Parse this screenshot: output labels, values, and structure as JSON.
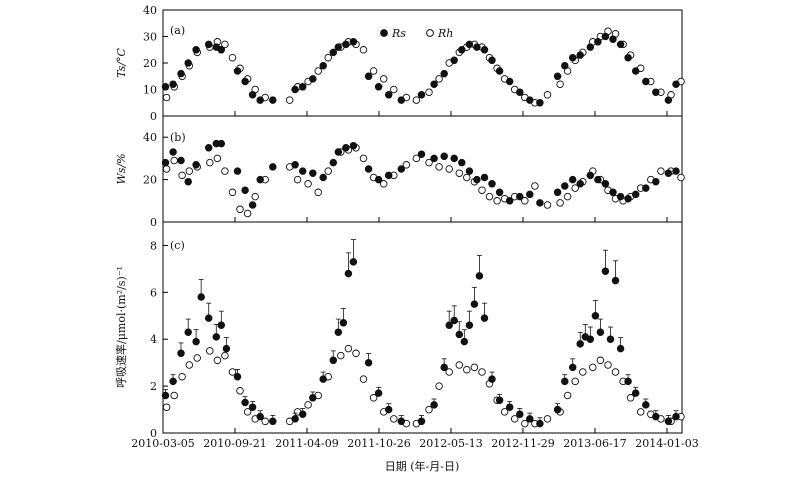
{
  "colors": {
    "ink": "#111111",
    "background": "#ffffff",
    "frame": "#000000"
  },
  "xlabel": "日期 (年-月-日)",
  "x_tick_labels": [
    "2010-03-05",
    "2010-09-21",
    "2011-04-09",
    "2011-10-26",
    "2012-05-13",
    "2012-11-29",
    "2013-06-17",
    "2014-01-03"
  ],
  "legend": {
    "rs_label": "Rs",
    "rh_label": "Rh",
    "placement": "top"
  },
  "chart_data": [
    {
      "type": "scatter",
      "panel": "(a)",
      "ylabel": "Ts/°C",
      "ylim": [
        0,
        40
      ],
      "yticks": [
        0,
        10,
        20,
        30,
        40
      ],
      "series": [
        {
          "name": "Rs",
          "marker": "filled-circle",
          "x": [
            "2010-03-12",
            "2010-04-02",
            "2010-04-24",
            "2010-05-14",
            "2010-06-05",
            "2010-07-10",
            "2010-07-31",
            "2010-08-14",
            "2010-09-28",
            "2010-10-19",
            "2010-11-09",
            "2010-11-30",
            "2011-01-04",
            "2011-03-07",
            "2011-03-28",
            "2011-04-25",
            "2011-05-24",
            "2011-06-21",
            "2011-07-05",
            "2011-07-26",
            "2011-08-16",
            "2011-09-27",
            "2011-10-25",
            "2011-11-22",
            "2011-12-27",
            "2012-02-21",
            "2012-03-27",
            "2012-04-24",
            "2012-05-22",
            "2012-06-12",
            "2012-07-03",
            "2012-07-24",
            "2012-08-14",
            "2012-09-04",
            "2012-09-25",
            "2012-10-23",
            "2012-11-20",
            "2012-12-18",
            "2013-01-15",
            "2013-03-05",
            "2013-03-25",
            "2013-04-16",
            "2013-05-07",
            "2013-06-04",
            "2013-06-25",
            "2013-07-16",
            "2013-08-06",
            "2013-08-27",
            "2013-09-17",
            "2013-10-08",
            "2013-11-05",
            "2013-12-03",
            "2014-01-07",
            "2014-01-28"
          ],
          "values": [
            11,
            12,
            16,
            20,
            25,
            27,
            26,
            25,
            17,
            13,
            8,
            6,
            6,
            10,
            11,
            14,
            19,
            24,
            26,
            27,
            28,
            15,
            11,
            8,
            6,
            8,
            12,
            16,
            21,
            25,
            27,
            26,
            25,
            21,
            17,
            13,
            9,
            6,
            5,
            15,
            19,
            22,
            23,
            26,
            28,
            30,
            29,
            27,
            22,
            17,
            13,
            9,
            6,
            12
          ]
        },
        {
          "name": "Rh",
          "marker": "open-circle",
          "x": [
            "2010-03-15",
            "2010-04-05",
            "2010-04-27",
            "2010-05-17",
            "2010-06-08",
            "2010-07-13",
            "2010-08-03",
            "2010-08-24",
            "2010-09-14",
            "2010-10-05",
            "2010-10-26",
            "2010-11-16",
            "2010-12-14",
            "2011-02-20",
            "2011-03-14",
            "2011-04-12",
            "2011-05-10",
            "2011-06-07",
            "2011-07-12",
            "2011-08-02",
            "2011-08-23",
            "2011-09-13",
            "2011-10-11",
            "2011-11-08",
            "2011-12-06",
            "2012-01-10",
            "2012-02-07",
            "2012-03-13",
            "2012-04-10",
            "2012-05-08",
            "2012-06-05",
            "2012-06-26",
            "2012-07-17",
            "2012-08-07",
            "2012-08-28",
            "2012-09-18",
            "2012-10-09",
            "2012-11-06",
            "2012-12-04",
            "2013-01-01",
            "2013-02-05",
            "2013-03-12",
            "2013-04-02",
            "2013-04-23",
            "2013-05-14",
            "2013-06-11",
            "2013-07-02",
            "2013-07-23",
            "2013-08-13",
            "2013-09-03",
            "2013-09-24",
            "2013-10-22",
            "2013-11-19",
            "2013-12-17",
            "2014-01-14",
            "2014-02-11"
          ],
          "values": [
            7,
            11,
            15,
            19,
            24,
            26,
            28,
            27,
            22,
            18,
            14,
            10,
            7,
            6,
            11,
            13,
            17,
            22,
            26,
            28,
            27,
            25,
            17,
            14,
            10,
            7,
            6,
            9,
            14,
            20,
            24,
            26,
            27,
            26,
            22,
            18,
            14,
            10,
            7,
            5,
            8,
            12,
            17,
            21,
            24,
            28,
            30,
            32,
            31,
            27,
            23,
            18,
            13,
            9,
            8,
            13
          ]
        }
      ]
    },
    {
      "type": "scatter",
      "panel": "(b)",
      "ylabel": "Ws/%",
      "ylim": [
        0,
        50
      ],
      "yticks": [
        0,
        20,
        40
      ],
      "series": [
        {
          "name": "Rs",
          "marker": "filled-circle",
          "x": [
            "2010-03-12",
            "2010-04-02",
            "2010-04-24",
            "2010-05-14",
            "2010-06-05",
            "2010-07-10",
            "2010-07-31",
            "2010-08-14",
            "2010-09-28",
            "2010-10-19",
            "2010-11-09",
            "2010-11-30",
            "2011-01-04",
            "2011-03-07",
            "2011-03-28",
            "2011-04-25",
            "2011-05-24",
            "2011-06-21",
            "2011-07-05",
            "2011-07-26",
            "2011-08-16",
            "2011-09-27",
            "2011-10-25",
            "2011-11-22",
            "2011-12-27",
            "2012-02-21",
            "2012-03-27",
            "2012-04-24",
            "2012-05-22",
            "2012-06-12",
            "2012-07-03",
            "2012-07-24",
            "2012-08-14",
            "2012-09-04",
            "2012-09-25",
            "2012-10-23",
            "2012-11-20",
            "2012-12-18",
            "2013-01-15",
            "2013-03-05",
            "2013-03-25",
            "2013-04-16",
            "2013-05-07",
            "2013-06-04",
            "2013-06-25",
            "2013-07-16",
            "2013-08-06",
            "2013-08-27",
            "2013-09-17",
            "2013-10-08",
            "2013-11-05",
            "2013-12-03",
            "2014-01-07",
            "2014-01-28"
          ],
          "values": [
            28,
            33,
            29,
            19,
            27,
            35,
            37,
            37,
            24,
            15,
            8,
            20,
            26,
            27,
            24,
            23,
            21,
            28,
            33,
            35,
            36,
            25,
            20,
            22,
            25,
            32,
            30,
            31,
            30,
            28,
            24,
            20,
            21,
            18,
            14,
            10,
            12,
            13,
            9,
            14,
            17,
            20,
            18,
            22,
            20,
            18,
            14,
            12,
            11,
            13,
            16,
            19,
            23,
            24
          ]
        },
        {
          "name": "Rh",
          "marker": "open-circle",
          "x": [
            "2010-03-15",
            "2010-04-05",
            "2010-04-27",
            "2010-05-17",
            "2010-06-08",
            "2010-07-13",
            "2010-08-03",
            "2010-08-24",
            "2010-09-14",
            "2010-10-05",
            "2010-10-26",
            "2010-11-16",
            "2010-12-14",
            "2011-02-20",
            "2011-03-14",
            "2011-04-12",
            "2011-05-10",
            "2011-06-07",
            "2011-07-12",
            "2011-08-02",
            "2011-08-23",
            "2011-09-13",
            "2011-10-11",
            "2011-11-08",
            "2011-12-06",
            "2012-01-10",
            "2012-02-07",
            "2012-03-13",
            "2012-04-10",
            "2012-05-08",
            "2012-06-05",
            "2012-06-26",
            "2012-07-17",
            "2012-08-07",
            "2012-08-28",
            "2012-09-18",
            "2012-10-09",
            "2012-11-06",
            "2012-12-04",
            "2013-01-01",
            "2013-02-05",
            "2013-03-12",
            "2013-04-02",
            "2013-04-23",
            "2013-05-14",
            "2013-06-11",
            "2013-07-02",
            "2013-07-23",
            "2013-08-13",
            "2013-09-03",
            "2013-09-24",
            "2013-10-22",
            "2013-11-19",
            "2013-12-17",
            "2014-01-14",
            "2014-02-11"
          ],
          "values": [
            25,
            29,
            22,
            24,
            26,
            28,
            30,
            24,
            14,
            6,
            4,
            12,
            20,
            26,
            20,
            18,
            14,
            24,
            33,
            34,
            35,
            30,
            21,
            18,
            22,
            27,
            30,
            28,
            26,
            25,
            23,
            21,
            19,
            15,
            12,
            10,
            11,
            12,
            10,
            17,
            8,
            9,
            12,
            16,
            19,
            24,
            20,
            15,
            11,
            10,
            12,
            16,
            20,
            24,
            24,
            21
          ]
        }
      ]
    },
    {
      "type": "scatter",
      "panel": "(c)",
      "ylabel": "呼吸速率/μmol·(m²/s)⁻¹",
      "ylim": [
        0,
        9
      ],
      "yticks": [
        0,
        2,
        4,
        6,
        8
      ],
      "series": [
        {
          "name": "Rs",
          "marker": "filled-circle",
          "x": [
            "2010-03-12",
            "2010-04-02",
            "2010-04-24",
            "2010-05-14",
            "2010-06-05",
            "2010-06-19",
            "2010-07-10",
            "2010-07-31",
            "2010-08-14",
            "2010-08-28",
            "2010-09-28",
            "2010-10-19",
            "2010-11-09",
            "2010-11-30",
            "2011-01-04",
            "2011-03-07",
            "2011-03-28",
            "2011-04-25",
            "2011-05-24",
            "2011-06-21",
            "2011-07-05",
            "2011-07-19",
            "2011-08-02",
            "2011-08-16",
            "2011-09-27",
            "2011-10-25",
            "2011-11-22",
            "2011-12-27",
            "2012-02-21",
            "2012-03-27",
            "2012-04-24",
            "2012-05-08",
            "2012-05-22",
            "2012-06-05",
            "2012-06-19",
            "2012-07-03",
            "2012-07-17",
            "2012-07-31",
            "2012-08-14",
            "2012-09-04",
            "2012-09-25",
            "2012-10-23",
            "2012-11-20",
            "2012-12-18",
            "2013-01-15",
            "2013-03-05",
            "2013-03-25",
            "2013-04-16",
            "2013-05-07",
            "2013-05-21",
            "2013-06-04",
            "2013-06-18",
            "2013-07-02",
            "2013-07-16",
            "2013-07-30",
            "2013-08-13",
            "2013-08-27",
            "2013-09-17",
            "2013-10-08",
            "2013-11-05",
            "2013-12-03",
            "2014-01-07",
            "2014-01-28"
          ],
          "values": [
            1.6,
            2.2,
            3.4,
            4.3,
            3.9,
            5.8,
            4.9,
            4.1,
            4.6,
            3.6,
            2.4,
            1.3,
            1.1,
            0.7,
            0.5,
            0.6,
            0.8,
            1.5,
            2.3,
            3.1,
            4.3,
            4.7,
            6.8,
            7.3,
            3.0,
            1.7,
            1.0,
            0.5,
            0.5,
            1.2,
            2.8,
            4.6,
            4.8,
            4.2,
            3.9,
            4.6,
            5.5,
            6.7,
            4.9,
            2.3,
            1.4,
            1.1,
            0.8,
            0.6,
            0.4,
            1.0,
            2.2,
            2.8,
            3.8,
            4.1,
            4.0,
            5.0,
            4.3,
            6.9,
            4.0,
            6.5,
            3.6,
            2.2,
            1.7,
            1.2,
            0.7,
            0.5,
            0.7
          ]
        },
        {
          "name": "Rh",
          "marker": "open-circle",
          "x": [
            "2010-03-15",
            "2010-04-05",
            "2010-04-27",
            "2010-05-17",
            "2010-06-08",
            "2010-07-13",
            "2010-08-03",
            "2010-08-24",
            "2010-09-14",
            "2010-10-05",
            "2010-10-26",
            "2010-11-16",
            "2010-12-14",
            "2011-02-20",
            "2011-03-14",
            "2011-04-12",
            "2011-05-10",
            "2011-06-07",
            "2011-07-12",
            "2011-08-02",
            "2011-08-23",
            "2011-09-13",
            "2011-10-11",
            "2011-11-08",
            "2011-12-06",
            "2012-01-10",
            "2012-02-07",
            "2012-03-13",
            "2012-04-10",
            "2012-05-08",
            "2012-06-05",
            "2012-06-26",
            "2012-07-17",
            "2012-08-07",
            "2012-08-28",
            "2012-09-18",
            "2012-10-09",
            "2012-11-06",
            "2012-12-04",
            "2013-01-01",
            "2013-02-05",
            "2013-03-12",
            "2013-04-02",
            "2013-04-23",
            "2013-05-14",
            "2013-06-11",
            "2013-07-02",
            "2013-07-23",
            "2013-08-13",
            "2013-09-03",
            "2013-09-24",
            "2013-10-22",
            "2013-11-19",
            "2013-12-17",
            "2014-01-14",
            "2014-02-11"
          ],
          "values": [
            1.1,
            1.6,
            2.4,
            2.9,
            3.2,
            3.5,
            3.1,
            3.3,
            2.6,
            1.8,
            0.9,
            0.6,
            0.5,
            0.5,
            0.9,
            1.2,
            1.6,
            2.4,
            3.3,
            3.6,
            3.4,
            2.3,
            1.5,
            0.9,
            0.6,
            0.4,
            0.4,
            1.0,
            2.0,
            2.6,
            2.9,
            2.7,
            2.8,
            2.6,
            2.1,
            1.4,
            0.9,
            0.6,
            0.4,
            0.4,
            0.6,
            0.9,
            1.6,
            2.2,
            2.6,
            2.8,
            3.1,
            2.9,
            2.6,
            2.2,
            1.5,
            0.9,
            0.8,
            0.6,
            0.5,
            0.7
          ]
        }
      ],
      "error_bars": "upper whiskers drawn on Rs points"
    }
  ]
}
